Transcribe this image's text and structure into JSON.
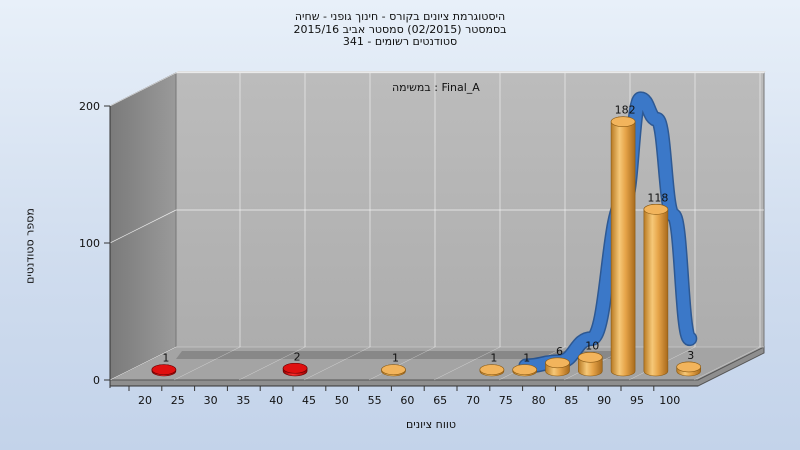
{
  "title": {
    "line1": "היסטוגרמת ציונים בקורס - חינוך גופני - שחיה",
    "line2": "בסמסטר  (02/2015)  סמסטר אביב 2015/16",
    "line3": "341 - סטודנטים רשומים"
  },
  "assignment_label": "במשימה : Final_A",
  "colors": {
    "background": "#d6e3f2",
    "bar_low": "#d40000",
    "bar_ok": "#e0a040",
    "curve": "#3b78c8",
    "wall": "#b4b4b4",
    "side_wall": "#8a8a8a",
    "floor": "#a8a8a8"
  },
  "chart_data": {
    "type": "bar",
    "title": "היסטוגרמת ציונים בקורס - חינוך גופני - שחיה",
    "xlabel": "טווח ציונים",
    "ylabel": "מספר סטודנטים",
    "ylim": [
      0,
      200
    ],
    "yticks": [
      0,
      100,
      200
    ],
    "xticks": [
      "20",
      "25",
      "30",
      "35",
      "40",
      "45",
      "50",
      "55",
      "60",
      "65",
      "70",
      "75",
      "80",
      "85",
      "90",
      "95",
      "100"
    ],
    "grid": true,
    "bars": [
      {
        "x": 20,
        "value": 1,
        "label": "1",
        "color": "red"
      },
      {
        "x": 40,
        "value": 2,
        "label": "2",
        "color": "red"
      },
      {
        "x": 55,
        "value": 1,
        "label": "1",
        "color": "gold"
      },
      {
        "x": 70,
        "value": 1,
        "label": "1",
        "color": "gold"
      },
      {
        "x": 75,
        "value": 1,
        "label": "1",
        "color": "gold"
      },
      {
        "x": 80,
        "value": 6,
        "label": "6",
        "color": "gold"
      },
      {
        "x": 85,
        "value": 10,
        "label": "10",
        "color": "gold"
      },
      {
        "x": 90,
        "value": 182,
        "label": "182",
        "color": "gold"
      },
      {
        "x": 95,
        "value": 118,
        "label": "118",
        "color": "gold"
      },
      {
        "x": 100,
        "value": 3,
        "label": "3",
        "color": "gold"
      }
    ],
    "curve": {
      "type": "normal-distribution",
      "x": [
        75,
        80,
        85,
        90,
        92.5,
        95,
        97.5,
        100
      ],
      "y": [
        0,
        3,
        20,
        120,
        195,
        180,
        110,
        20
      ]
    }
  }
}
